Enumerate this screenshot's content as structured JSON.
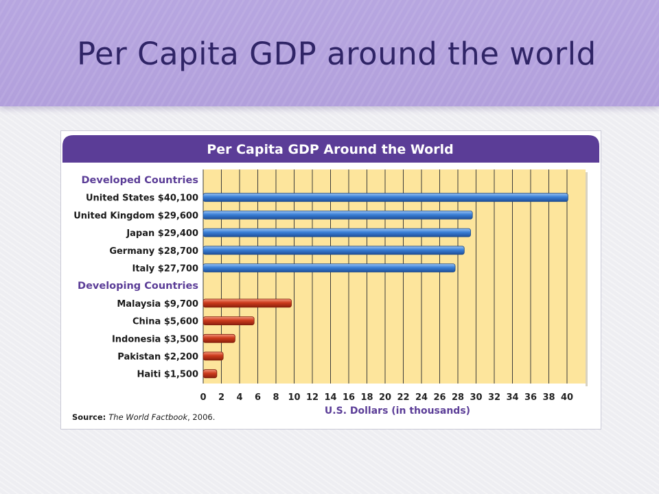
{
  "slide": {
    "title": "Per Capita GDP around the world"
  },
  "chart_data": {
    "type": "bar",
    "orientation": "horizontal",
    "title": "Per Capita GDP Around the World",
    "xlabel": "U.S. Dollars (in thousands)",
    "xlim": [
      0,
      42
    ],
    "x_ticks": [
      0,
      2,
      4,
      6,
      8,
      10,
      12,
      14,
      16,
      18,
      20,
      22,
      24,
      26,
      28,
      30,
      32,
      34,
      36,
      38,
      40
    ],
    "grid": true,
    "source_label": "Source:",
    "source_text": "The World Factbook, 2006.",
    "groups": [
      {
        "name": "Developed Countries",
        "color": "#3a7fd6",
        "items": [
          {
            "country": "United States",
            "label": "$40,100",
            "value": 40.1
          },
          {
            "country": "United Kingdom",
            "label": "$29,600",
            "value": 29.6
          },
          {
            "country": "Japan",
            "label": "$29,400",
            "value": 29.4
          },
          {
            "country": "Germany",
            "label": "$28,700",
            "value": 28.7
          },
          {
            "country": "Italy",
            "label": "$27,700",
            "value": 27.7
          }
        ]
      },
      {
        "name": "Developing Countries",
        "color": "#cc3a1c",
        "items": [
          {
            "country": "Malaysia",
            "label": "$9,700",
            "value": 9.7
          },
          {
            "country": "China",
            "label": "$5,600",
            "value": 5.6
          },
          {
            "country": "Indonesia",
            "label": "$3,500",
            "value": 3.5
          },
          {
            "country": "Pakistan",
            "label": "$2,200",
            "value": 2.2
          },
          {
            "country": "Haiti",
            "label": "$1,500",
            "value": 1.5
          }
        ]
      }
    ],
    "colors": {
      "header": "#5b3d97",
      "plot_bg": "#fde59c",
      "group_label": "#5b3d97",
      "axis_label": "#5b3d97"
    }
  }
}
